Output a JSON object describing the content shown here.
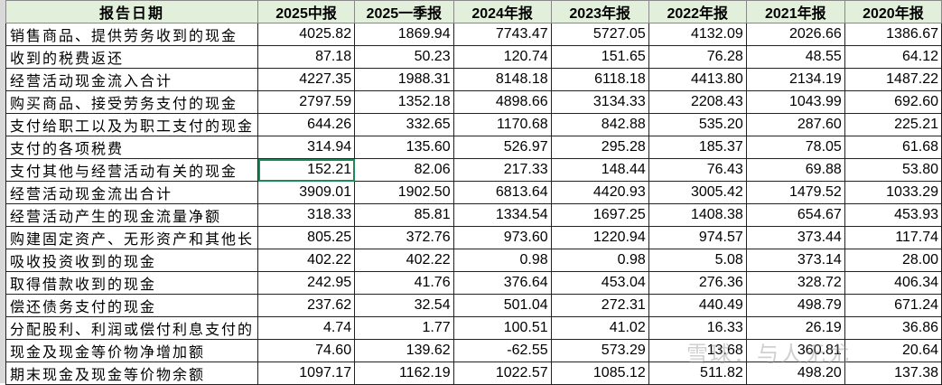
{
  "headers": [
    "报告日期",
    "2025中报",
    "2025一季报",
    "2024年报",
    "2023年报",
    "2022年报",
    "2021年报",
    "2020年报"
  ],
  "rows": [
    [
      "销售商品、提供劳务收到的现金",
      "4025.82",
      "1869.94",
      "7743.47",
      "5727.05",
      "4132.09",
      "2026.66",
      "1386.67"
    ],
    [
      "收到的税费返还",
      "87.18",
      "50.23",
      "120.74",
      "151.65",
      "76.28",
      "48.55",
      "64.12"
    ],
    [
      "经营活动现金流入合计",
      "4227.35",
      "1988.31",
      "8148.18",
      "6118.18",
      "4413.80",
      "2134.19",
      "1487.22"
    ],
    [
      "购买商品、接受劳务支付的现金",
      "2797.59",
      "1352.18",
      "4898.66",
      "3134.33",
      "2208.43",
      "1043.99",
      "692.60"
    ],
    [
      "支付给职工以及为职工支付的现金",
      "644.26",
      "332.65",
      "1170.68",
      "842.88",
      "535.20",
      "287.60",
      "225.21"
    ],
    [
      "支付的各项税费",
      "314.94",
      "135.60",
      "526.97",
      "295.28",
      "185.37",
      "78.05",
      "61.68"
    ],
    [
      "支付其他与经营活动有关的现金",
      "152.21",
      "82.06",
      "217.33",
      "148.44",
      "76.43",
      "69.88",
      "53.80"
    ],
    [
      "经营活动现金流出合计",
      "3909.01",
      "1902.50",
      "6813.64",
      "4420.93",
      "3005.42",
      "1479.52",
      "1033.29"
    ],
    [
      "经营活动产生的现金流量净额",
      "318.33",
      "85.81",
      "1334.54",
      "1697.25",
      "1408.38",
      "654.67",
      "453.93"
    ],
    [
      "购建固定资产、无形资产和其他长",
      "805.25",
      "372.76",
      "973.60",
      "1220.94",
      "974.57",
      "373.44",
      "117.74"
    ],
    [
      "吸收投资收到的现金",
      "402.22",
      "402.22",
      "0.98",
      "0.98",
      "5.08",
      "373.14",
      "28.00"
    ],
    [
      "取得借款收到的现金",
      "242.95",
      "41.76",
      "376.64",
      "453.04",
      "276.36",
      "328.72",
      "406.34"
    ],
    [
      "偿还债务支付的现金",
      "237.62",
      "32.54",
      "501.04",
      "272.31",
      "440.49",
      "498.79",
      "671.24"
    ],
    [
      "分配股利、利润或偿付利息支付的",
      "4.74",
      "1.77",
      "100.51",
      "41.02",
      "16.33",
      "26.19",
      "36.86"
    ],
    [
      "现金及现金等价物净增加额",
      "74.60",
      "139.62",
      "-62.55",
      "573.29",
      "13.68",
      "360.81",
      "20.64"
    ],
    [
      "期末现金及现金等价物余额",
      "1097.17",
      "1162.19",
      "1022.57",
      "1085.12",
      "511.82",
      "498.20",
      "137.38"
    ]
  ],
  "watermark": "雪球：与人无尤",
  "colors": {
    "header_bg": "#e2efda",
    "selection": "#1d8a5a"
  }
}
